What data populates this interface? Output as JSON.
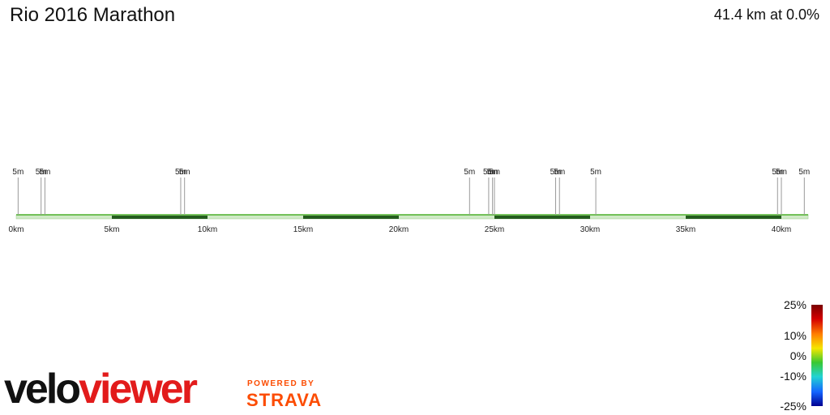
{
  "header": {
    "title": "Rio 2016 Marathon",
    "summary": "41.4 km at 0.0%"
  },
  "chart_data": {
    "type": "area",
    "title": "Rio 2016 Marathon",
    "total_distance_km": 41.4,
    "average_gradient_pct": 0.0,
    "x_ticks": [
      {
        "km": 0,
        "label": "0km"
      },
      {
        "km": 5,
        "label": "5km"
      },
      {
        "km": 10,
        "label": "10km"
      },
      {
        "km": 15,
        "label": "15km"
      },
      {
        "km": 20,
        "label": "20km"
      },
      {
        "km": 25,
        "label": "25km"
      },
      {
        "km": 30,
        "label": "30km"
      },
      {
        "km": 35,
        "label": "35km"
      },
      {
        "km": 40,
        "label": "40km"
      }
    ],
    "elevation_markers": [
      {
        "km": 0.1,
        "label": "5m"
      },
      {
        "km": 1.3,
        "label": "5m"
      },
      {
        "km": 1.5,
        "label": "5m"
      },
      {
        "km": 8.6,
        "label": "5m"
      },
      {
        "km": 8.8,
        "label": "5m"
      },
      {
        "km": 23.7,
        "label": "5m"
      },
      {
        "km": 24.7,
        "label": "5m"
      },
      {
        "km": 24.9,
        "label": "5m"
      },
      {
        "km": 25.0,
        "label": "5m"
      },
      {
        "km": 28.2,
        "label": "5m"
      },
      {
        "km": 28.4,
        "label": "5m"
      },
      {
        "km": 30.3,
        "label": "5m"
      },
      {
        "km": 39.8,
        "label": "5m"
      },
      {
        "km": 40.0,
        "label": "5m"
      },
      {
        "km": 41.2,
        "label": "5m"
      }
    ],
    "shaded_bands_km": [
      [
        5,
        10
      ],
      [
        15,
        20
      ],
      [
        25,
        30
      ],
      [
        35,
        40
      ]
    ],
    "gradient_color": "#4caf2a",
    "band_color": "#245c1e",
    "legend": {
      "labels": [
        "25%",
        "10%",
        "0%",
        "-10%",
        "-25%"
      ],
      "values": [
        25,
        10,
        0,
        -10,
        -25
      ],
      "colors": [
        "#7a0000",
        "#d40000",
        "#ff7f00",
        "#f5e600",
        "#39c832",
        "#22d3d3",
        "#1464ff",
        "#000090"
      ]
    }
  },
  "branding": {
    "velo": "velo",
    "viewer": "viewer",
    "powered_by": "POWERED BY",
    "strava": "STRAVA"
  }
}
